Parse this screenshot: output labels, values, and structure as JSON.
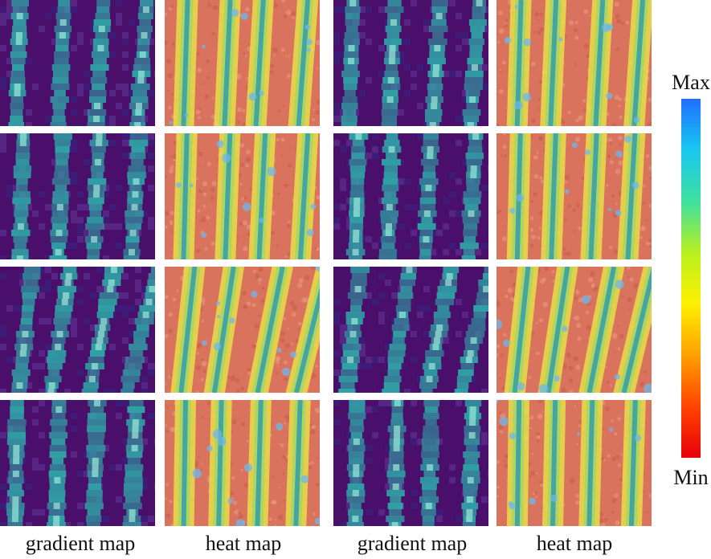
{
  "column_labels": [
    "gradient map",
    "heat map",
    "gradient map",
    "heat map"
  ],
  "colorbar": {
    "max_label": "Max",
    "min_label": "Min",
    "colors": [
      "#1f6fff",
      "#19c8f0",
      "#3ee0a0",
      "#b8f020",
      "#fff000",
      "#ffa000",
      "#ff4400",
      "#e8000a"
    ]
  },
  "grid": {
    "rows": 4,
    "columns": 4,
    "column_types": [
      "gradient",
      "heat",
      "gradient",
      "heat"
    ]
  },
  "palette": {
    "gradient_background": "#4a0f6b",
    "gradient_stripe": "#2fa8a8",
    "gradient_highlight": "#9be8d8",
    "heat_soil": "#d9735e",
    "heat_edge": "#e8df4a",
    "heat_center": "#3aa0a8",
    "heat_spot": "#6fb6e8"
  }
}
